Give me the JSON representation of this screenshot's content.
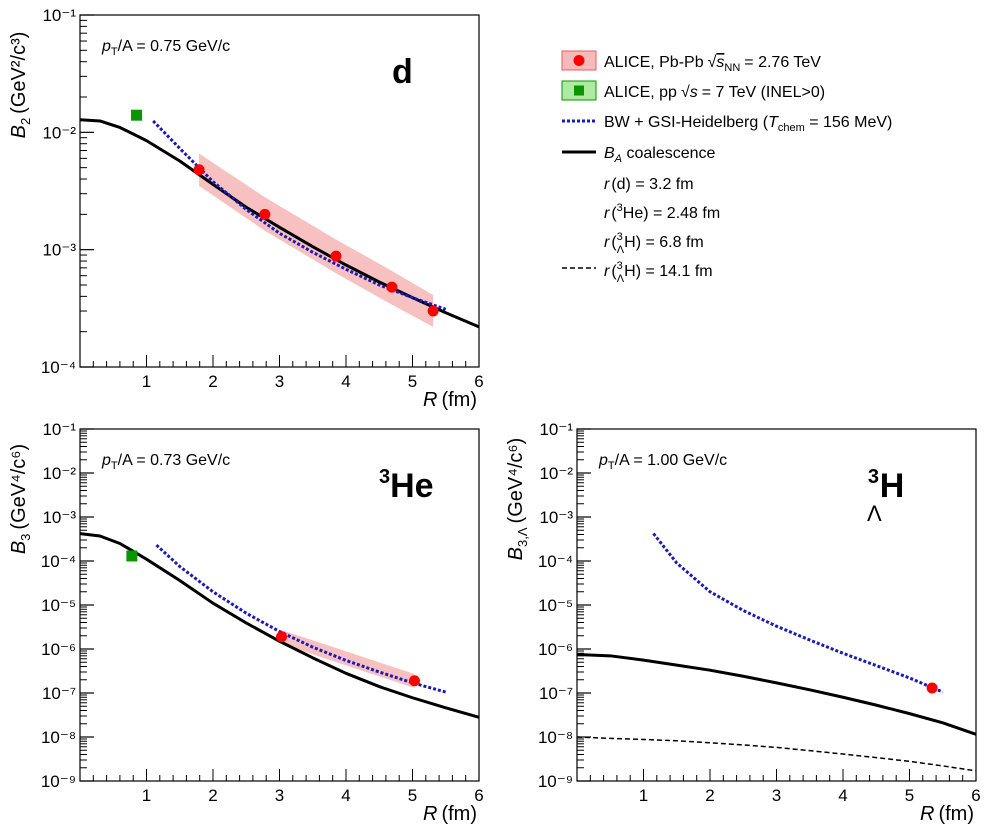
{
  "legend": {
    "items": [
      {
        "label": "ALICE, Pb-Pb",
        "label_extra": "= 2.76 TeV",
        "sqrt_sub": "NN",
        "symbol": "s",
        "color": "#ff0000",
        "band": "#f7baba"
      },
      {
        "label": "ALICE, pp",
        "label_extra": "= 7 TeV (INEL>0)",
        "symbol": "s",
        "color": "#0a9600"
      },
      {
        "label": "BW + GSI-Heidelberg (",
        "label_t": "T",
        "label_tsub": "chem",
        "label_end": " = 156 MeV)",
        "color": "#1a1ab4"
      },
      {
        "label_b": "B",
        "label_bsub": "A",
        "label": " coalescence",
        "color": "#000000"
      }
    ],
    "radii": [
      {
        "text": "(d) = 3.2 fm"
      },
      {
        "text": "He) = 2.48 fm",
        "sup": "3"
      },
      {
        "text": "H) = 6.8 fm",
        "sup": "3",
        "sub": "Λ"
      },
      {
        "text": "H) = 14.1 fm",
        "sup": "3",
        "sub": "Λ"
      }
    ]
  },
  "chart_data": [
    {
      "type": "scatter",
      "name": "d",
      "panel_label": "d",
      "annotation": "/A = 0.75 GeV/c",
      "ylabel_main": "B",
      "ylabel_sub": "2",
      "ylabel_unit": "(GeV²/c³)",
      "xlabel": "R (fm)",
      "xlim": [
        0,
        6
      ],
      "ylim_exp": [
        -4,
        -1
      ],
      "yscale": "log",
      "x_ticks": [
        1,
        2,
        3,
        4,
        5,
        6
      ],
      "y_tick_labels": [
        "10⁻⁴",
        "10⁻³",
        "10⁻²",
        "10⁻¹"
      ],
      "series": [
        {
          "name": "ALICE, Pb-Pb",
          "kind": "points",
          "x": [
            1.79,
            2.78,
            3.85,
            4.69,
            5.31
          ],
          "y": [
            0.0048,
            0.002,
            0.00088,
            0.00048,
            0.0003
          ]
        },
        {
          "name": "ALICE, pp",
          "kind": "points_square",
          "x": [
            0.85
          ],
          "y": [
            0.014
          ]
        },
        {
          "kind": "band",
          "x": [
            1.79,
            2.78,
            3.85,
            4.69,
            5.31
          ],
          "y_lo": [
            0.0035,
            0.00145,
            0.00063,
            0.00034,
            0.00022
          ],
          "y_hi": [
            0.0066,
            0.0028,
            0.00122,
            0.00066,
            0.00041
          ]
        },
        {
          "name": "BW + GSI-Heidelberg",
          "kind": "dotted",
          "x": [
            1.1,
            1.5,
            2.0,
            2.5,
            3.0,
            3.5,
            4.0,
            4.5,
            5.0,
            5.5
          ],
          "y": [
            0.0125,
            0.0073,
            0.0038,
            0.0022,
            0.00138,
            0.00095,
            0.00068,
            0.0005,
            0.00039,
            0.00031
          ]
        },
        {
          "name": "coalescence",
          "kind": "solid",
          "x": [
            0.0,
            0.3,
            0.6,
            1.0,
            1.5,
            2.0,
            2.5,
            3.0,
            3.5,
            4.0,
            4.5,
            5.0,
            5.5,
            6.0
          ],
          "y": [
            0.0128,
            0.0125,
            0.011,
            0.0085,
            0.0057,
            0.0036,
            0.0023,
            0.00155,
            0.00106,
            0.00074,
            0.00053,
            0.00039,
            0.00029,
            0.00022
          ]
        }
      ]
    },
    {
      "type": "scatter",
      "name": "3He",
      "panel_label_sup": "3",
      "panel_label": "He",
      "annotation": "/A = 0.73 GeV/c",
      "ylabel_main": "B",
      "ylabel_sub": "3",
      "ylabel_unit": "(GeV⁴/c⁶)",
      "xlabel": "R (fm)",
      "xlim": [
        0,
        6
      ],
      "ylim_exp": [
        -9,
        -1
      ],
      "yscale": "log",
      "x_ticks": [
        1,
        2,
        3,
        4,
        5,
        6
      ],
      "y_tick_labels": [
        "10⁻⁹",
        "10⁻⁸",
        "10⁻⁷",
        "10⁻⁶",
        "10⁻⁵",
        "10⁻⁴",
        "10⁻³",
        "10⁻²",
        "10⁻¹"
      ],
      "series": [
        {
          "name": "ALICE, Pb-Pb",
          "kind": "points",
          "x": [
            3.03,
            5.03
          ],
          "y": [
            1.9e-06,
            1.9e-07
          ]
        },
        {
          "name": "ALICE, pp",
          "kind": "points_square",
          "x": [
            0.78
          ],
          "y": [
            0.00013
          ]
        },
        {
          "kind": "band",
          "x": [
            3.03,
            5.03
          ],
          "y_lo": [
            1.3e-06,
            1.3e-07
          ],
          "y_hi": [
            2.7e-06,
            2.7e-07
          ]
        },
        {
          "name": "BW + GSI-Heidelberg",
          "kind": "dotted",
          "x": [
            1.15,
            1.5,
            2.0,
            2.5,
            3.0,
            3.5,
            4.0,
            4.5,
            5.0,
            5.5
          ],
          "y": [
            0.00023,
            7.5e-05,
            2e-05,
            6.5e-06,
            2.5e-06,
            1.1e-06,
            5.5e-07,
            3e-07,
            1.7e-07,
            1.05e-07
          ]
        },
        {
          "name": "coalescence",
          "kind": "solid",
          "x": [
            0.0,
            0.3,
            0.6,
            1.0,
            1.5,
            2.0,
            2.5,
            3.0,
            3.5,
            4.0,
            4.5,
            5.0,
            5.5,
            6.0
          ],
          "y": [
            0.00042,
            0.00037,
            0.00025,
            0.00011,
            3.6e-05,
            1.1e-05,
            3.9e-06,
            1.5e-06,
            6.3e-07,
            2.8e-07,
            1.4e-07,
            7.8e-08,
            4.6e-08,
            2.8e-08
          ]
        }
      ]
    },
    {
      "type": "scatter",
      "name": "3LH",
      "panel_label_sup": "3",
      "panel_label_sub": "Λ",
      "panel_label": "H",
      "annotation": "/A = 1.00 GeV/c",
      "ylabel_main": "B",
      "ylabel_sub": "3,Λ",
      "ylabel_unit": "(GeV⁴/c⁶)",
      "xlabel": "R (fm)",
      "xlim": [
        0,
        6
      ],
      "ylim_exp": [
        -9,
        -1
      ],
      "yscale": "log",
      "x_ticks": [
        1,
        2,
        3,
        4,
        5,
        6
      ],
      "y_tick_labels": [
        "10⁻⁹",
        "10⁻⁸",
        "10⁻⁷",
        "10⁻⁶",
        "10⁻⁵",
        "10⁻⁴",
        "10⁻³",
        "10⁻²",
        "10⁻¹"
      ],
      "series": [
        {
          "name": "ALICE, Pb-Pb",
          "kind": "points",
          "x": [
            5.34
          ],
          "y": [
            1.3e-07
          ]
        },
        {
          "name": "BW + GSI-Heidelberg",
          "kind": "dotted",
          "x": [
            1.15,
            1.5,
            2.0,
            2.5,
            3.0,
            3.5,
            4.0,
            4.5,
            5.0,
            5.5
          ],
          "y": [
            0.00042,
            9e-05,
            2e-05,
            7.5e-06,
            3.3e-06,
            1.6e-06,
            8e-07,
            4.2e-07,
            2.2e-07,
            1.05e-07
          ]
        },
        {
          "name": "coalescence r=6.8 fm",
          "kind": "solid",
          "x": [
            0.0,
            0.5,
            1.0,
            1.5,
            2.0,
            2.5,
            3.0,
            3.5,
            4.0,
            4.5,
            5.0,
            5.5,
            6.0
          ],
          "y": [
            7.5e-07,
            7e-07,
            5.6e-07,
            4.3e-07,
            3.3e-07,
            2.4e-07,
            1.7e-07,
            1.18e-07,
            8e-08,
            5.3e-08,
            3.4e-08,
            2.1e-08,
            1.15e-08
          ]
        },
        {
          "name": "coalescence r=14.1 fm",
          "kind": "dashed",
          "x": [
            0.0,
            0.5,
            1.0,
            1.5,
            2.0,
            2.5,
            3.0,
            3.5,
            4.0,
            4.5,
            5.0,
            5.5,
            6.0
          ],
          "y": [
            1e-08,
            9.3e-09,
            8.8e-09,
            8.2e-09,
            7.4e-09,
            6.6e-09,
            5.8e-09,
            4.9e-09,
            4.1e-09,
            3.4e-09,
            2.8e-09,
            2.2e-09,
            1.7e-09
          ]
        }
      ]
    }
  ]
}
